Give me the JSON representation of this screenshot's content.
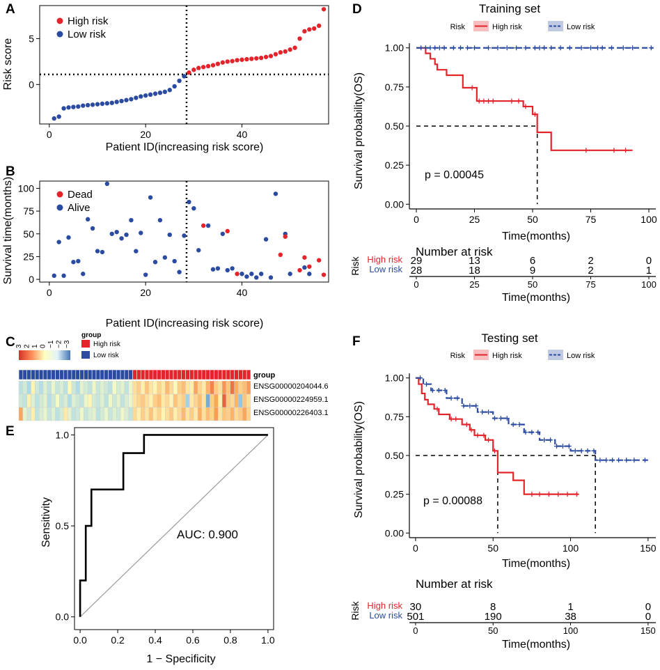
{
  "colors": {
    "high": "#e3242b",
    "low": "#2b4ba0",
    "grid": "#000000"
  },
  "chart_data": [
    {
      "panel": "A",
      "type": "scatter",
      "title": "",
      "xlabel": "Patient ID(increasing risk score)",
      "ylabel": "Risk score",
      "xlim": [
        -2,
        58
      ],
      "ylim": [
        -4.3,
        8.6
      ],
      "xticks": [
        0,
        20,
        40
      ],
      "yticks": [
        0,
        5
      ],
      "cutoff_x": 28.5,
      "cutoff_y": 1.1,
      "legend": [
        "High risk",
        "Low risk"
      ],
      "series": [
        {
          "name": "Low risk",
          "x": [
            1,
            2,
            3,
            4,
            5,
            6,
            7,
            8,
            9,
            10,
            11,
            12,
            13,
            14,
            15,
            16,
            17,
            18,
            19,
            20,
            21,
            22,
            23,
            24,
            25,
            26,
            27,
            28
          ],
          "y": [
            -3.7,
            -3.5,
            -2.6,
            -2.5,
            -2.45,
            -2.4,
            -2.3,
            -2.25,
            -2.2,
            -2.15,
            -2.1,
            -2.05,
            -2.0,
            -1.9,
            -1.8,
            -1.7,
            -1.6,
            -1.45,
            -1.3,
            -1.2,
            -1.1,
            -1.0,
            -0.9,
            -0.8,
            -0.6,
            -0.2,
            0.4,
            0.9
          ]
        },
        {
          "name": "High risk",
          "x": [
            29,
            30,
            31,
            32,
            33,
            34,
            35,
            36,
            37,
            38,
            39,
            40,
            41,
            42,
            43,
            44,
            45,
            46,
            47,
            48,
            49,
            50,
            51,
            52,
            53,
            54,
            55,
            56,
            57
          ],
          "y": [
            1.3,
            1.6,
            1.8,
            1.9,
            2.0,
            2.1,
            2.25,
            2.4,
            2.5,
            2.55,
            2.65,
            2.7,
            2.75,
            2.8,
            2.85,
            2.9,
            3.0,
            3.1,
            3.3,
            3.5,
            3.6,
            3.8,
            4.0,
            5.0,
            5.8,
            6.0,
            6.1,
            6.4,
            8.2
          ]
        }
      ]
    },
    {
      "panel": "B",
      "type": "scatter",
      "title": "",
      "xlabel": "Patient ID(increasing risk score)",
      "ylabel": "Survival time(months)",
      "xlim": [
        -2,
        58
      ],
      "ylim": [
        -3,
        108
      ],
      "xticks": [
        0,
        20,
        40
      ],
      "yticks": [
        0,
        25,
        50,
        75,
        100
      ],
      "cutoff_x": 28.5,
      "legend": [
        "Dead",
        "Alive"
      ],
      "series": [
        {
          "name": "Alive",
          "x": [
            1,
            2,
            3,
            4,
            5,
            6,
            7,
            8,
            9,
            10,
            11,
            12,
            13,
            14,
            15,
            16,
            17,
            18,
            19,
            20,
            21,
            22,
            23,
            24,
            25,
            26,
            27,
            28,
            29,
            30,
            31,
            33,
            34,
            35,
            36,
            37,
            38,
            40,
            41,
            42,
            43,
            44,
            45,
            46,
            47,
            49,
            50,
            53,
            54
          ],
          "y": [
            4,
            41,
            4,
            46,
            19,
            20,
            6,
            66,
            56,
            31,
            30,
            105,
            50,
            52,
            45,
            49,
            65,
            31,
            51,
            5,
            90,
            19,
            65,
            24,
            49,
            20,
            8,
            48,
            85,
            78,
            32,
            59,
            11,
            12,
            50,
            10,
            12,
            6,
            3,
            6,
            2,
            6,
            44,
            2,
            94,
            50,
            6,
            13,
            6
          ]
        },
        {
          "name": "Dead",
          "x": [
            32,
            37,
            39,
            48,
            49,
            52,
            53,
            54,
            56,
            57
          ],
          "y": [
            59,
            53,
            6,
            27,
            47,
            10,
            24,
            14,
            21,
            5
          ]
        }
      ]
    },
    {
      "panel": "C",
      "type": "heatmap",
      "legend_title": "group",
      "legend_groups": [
        "High risk",
        "Low risk"
      ],
      "scale_labels": [
        "3",
        "2",
        "1",
        "0",
        "−1",
        "−2",
        "−3"
      ],
      "row_labels": [
        "group",
        "ENSG00000204044.6",
        "ENSG00000224959.1",
        "ENSG00000226403.1"
      ],
      "n_low": 28,
      "n_high": 29,
      "rows": [
        [
          -1.2,
          -0.8,
          -1.5,
          0.2,
          -0.9,
          -1.3,
          -0.6,
          -1.1,
          -0.4,
          -1.0,
          -0.7,
          -1.2,
          0.1,
          -0.9,
          -1.4,
          -0.5,
          -0.8,
          -1.1,
          -0.3,
          -1.0,
          -0.6,
          -0.9,
          -1.2,
          -0.2,
          -0.8,
          -0.5,
          -1.1,
          -0.4,
          0.6,
          0.9,
          0.3,
          1.1,
          0.5,
          0.2,
          0.8,
          0.4,
          1.3,
          0.7,
          0.1,
          0.9,
          1.2,
          0.5,
          0.3,
          1.6,
          0.8,
          0.4,
          1.4,
          2.0,
          0.9,
          0.6,
          1.8,
          1.1,
          2.2,
          1.5,
          0.9,
          1.2,
          1.7
        ],
        [
          -0.9,
          -1.1,
          0.3,
          -0.6,
          -1.2,
          -0.8,
          -0.5,
          -1.3,
          -0.9,
          -0.2,
          -1.0,
          -0.7,
          -1.4,
          -0.6,
          -0.9,
          -1.1,
          -0.4,
          0.2,
          -0.8,
          -1.0,
          -0.6,
          -1.2,
          -0.3,
          -0.9,
          -0.5,
          -1.1,
          -0.7,
          -0.4,
          0.5,
          0.8,
          1.0,
          0.6,
          0.3,
          0.9,
          1.2,
          0.4,
          0.7,
          0.2,
          1.1,
          0.6,
          0.9,
          -1.6,
          0.4,
          0.8,
          1.2,
          0.5,
          -2.2,
          0.9,
          1.6,
          0.3,
          2.4,
          1.0,
          0.7,
          1.4,
          -1.8,
          1.1,
          0.6
        ],
        [
          1.6,
          -0.5,
          -0.9,
          0.3,
          -1.1,
          -0.7,
          -0.4,
          -1.0,
          -0.6,
          -1.2,
          -0.8,
          0.4,
          -0.5,
          -1.1,
          -0.9,
          -0.3,
          -1.0,
          -0.7,
          -0.5,
          -1.2,
          -0.8,
          -0.4,
          -1.0,
          -0.6,
          -0.9,
          -0.3,
          -0.7,
          -1.1,
          0.7,
          0.3,
          0.9,
          0.5,
          1.1,
          0.4,
          0.8,
          0.2,
          0.6,
          1.0,
          0.3,
          0.7,
          1.3,
          0.5,
          0.9,
          0.4,
          1.5,
          0.6,
          1.2,
          0.8,
          1.7,
          0.5,
          1.1,
          0.9,
          1.4,
          0.7,
          1.0,
          1.6,
          0.8
        ]
      ]
    },
    {
      "panel": "E",
      "type": "line",
      "title": "",
      "xlabel": "1 − Specificity",
      "ylabel": "Sensitivity",
      "xlim": [
        0,
        1
      ],
      "ylim": [
        0,
        1
      ],
      "xticks": [
        0.0,
        0.2,
        0.4,
        0.6,
        0.8,
        1.0
      ],
      "yticks": [
        0.0,
        0.5,
        1.0
      ],
      "annotation": "AUC: 0.900",
      "series": [
        {
          "name": "ROC",
          "x": [
            0,
            0,
            0.03,
            0.03,
            0.06,
            0.06,
            0.06,
            0.23,
            0.23,
            0.28,
            0.28,
            0.34,
            0.34,
            1.0
          ],
          "y": [
            0,
            0.2,
            0.2,
            0.5,
            0.5,
            0.6,
            0.7,
            0.7,
            0.9,
            0.9,
            0.9,
            0.9,
            1.0,
            1.0
          ]
        }
      ]
    },
    {
      "panel": "D",
      "type": "line",
      "title": "Training set",
      "xlabel": "Time(months)",
      "ylabel": "Survival probability(OS)",
      "legend_title": "Risk",
      "legend": [
        "High risk",
        "Low risk"
      ],
      "xlim": [
        -3,
        103
      ],
      "ylim": [
        -0.03,
        1.03
      ],
      "xticks": [
        0,
        25,
        50,
        75,
        100
      ],
      "yticks": [
        0.0,
        0.25,
        0.5,
        0.75,
        1.0
      ],
      "pvalue": "p = 0.00045",
      "median": 52,
      "series": [
        {
          "name": "High risk",
          "x": [
            0,
            4,
            6,
            8,
            9,
            13,
            20,
            26,
            46,
            50,
            52,
            58,
            93
          ],
          "y": [
            1.0,
            0.965,
            0.93,
            0.895,
            0.86,
            0.825,
            0.745,
            0.66,
            0.625,
            0.575,
            0.46,
            0.345,
            0.345
          ],
          "censor_x": [
            24,
            27,
            29,
            31,
            33,
            41,
            44,
            47,
            51,
            73,
            85,
            90
          ]
        },
        {
          "name": "Low risk",
          "x": [
            0,
            102
          ],
          "y": [
            1.0,
            1.0
          ],
          "censor_x": [
            2,
            4,
            6,
            8,
            10,
            12,
            16,
            19,
            22,
            25,
            31,
            35,
            39,
            43,
            47,
            51,
            53,
            55,
            58,
            62,
            66,
            71,
            75,
            78,
            80,
            84,
            89,
            93,
            101
          ]
        }
      ],
      "risk_table": {
        "title": "Number at risk",
        "row_title": "Risk",
        "rows": [
          "High risk",
          "Low risk"
        ],
        "times": [
          0,
          25,
          50,
          75,
          100
        ],
        "counts": [
          [
            "29",
            "13",
            "6",
            "2",
            "0"
          ],
          [
            "28",
            "18",
            "9",
            "2",
            "1"
          ]
        ],
        "xlabel": "Time(months)"
      }
    },
    {
      "panel": "F",
      "type": "line",
      "title": "Testing set",
      "xlabel": "Time(months)",
      "ylabel": "Survival probability(OS)",
      "legend_title": "Risk",
      "legend": [
        "High risk",
        "Low risk"
      ],
      "xlim": [
        -4,
        155
      ],
      "ylim": [
        -0.03,
        1.03
      ],
      "xticks": [
        0,
        50,
        100,
        150
      ],
      "yticks": [
        0.0,
        0.25,
        0.5,
        0.75,
        1.0
      ],
      "pvalue": "p = 0.00088",
      "medians": [
        53,
        116
      ],
      "series": [
        {
          "name": "High risk",
          "x": [
            0,
            2,
            4,
            6,
            8,
            12,
            15,
            22,
            30,
            35,
            38,
            45,
            50,
            53,
            63,
            70,
            75,
            105
          ],
          "y": [
            1.0,
            0.96,
            0.9,
            0.86,
            0.83,
            0.8,
            0.765,
            0.735,
            0.7,
            0.665,
            0.63,
            0.6,
            0.53,
            0.39,
            0.34,
            0.25,
            0.25,
            0.25
          ],
          "censor_x": [
            14,
            23,
            26,
            33,
            36,
            40,
            44,
            47,
            51,
            75,
            80,
            86,
            92,
            98,
            104
          ]
        },
        {
          "name": "Low risk",
          "x": [
            0,
            5,
            10,
            20,
            30,
            40,
            50,
            60,
            70,
            80,
            90,
            100,
            110,
            116,
            120,
            130,
            150
          ],
          "y": [
            1.0,
            0.96,
            0.92,
            0.87,
            0.82,
            0.78,
            0.74,
            0.7,
            0.65,
            0.6,
            0.56,
            0.53,
            0.53,
            0.47,
            0.47,
            0.47,
            0.47
          ],
          "censor_x": [
            3,
            7,
            11,
            15,
            19,
            23,
            27,
            31,
            35,
            39,
            43,
            47,
            51,
            55,
            59,
            63,
            67,
            71,
            75,
            79,
            83,
            87,
            91,
            95,
            99,
            103,
            107,
            111,
            115,
            119,
            123,
            127,
            131,
            136,
            141,
            148
          ]
        }
      ],
      "risk_table": {
        "title": "Number at risk",
        "row_title": "Risk",
        "rows": [
          "High risk",
          "Low risk"
        ],
        "times": [
          0,
          50,
          100,
          150
        ],
        "counts": [
          [
            "30",
            "8",
            "1",
            "0"
          ],
          [
            "501",
            "190",
            "38",
            "0"
          ]
        ],
        "xlabel": "Time(months)"
      }
    }
  ]
}
